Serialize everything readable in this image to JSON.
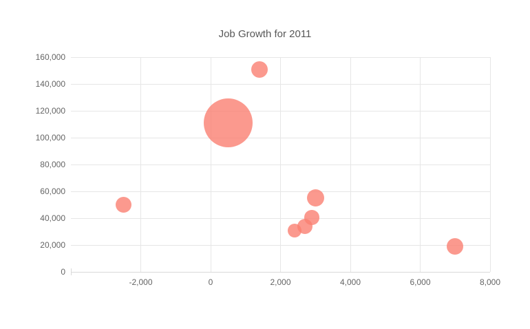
{
  "title": "Job Growth for 2011",
  "chart_data": {
    "type": "scatter",
    "subtype": "bubble",
    "title": "Job Growth for 2011",
    "xlabel": "",
    "ylabel": "",
    "xlim": [
      -4000,
      8000
    ],
    "ylim": [
      0,
      160000
    ],
    "grid": true,
    "legend": "none",
    "bubble_color": "#FA8072",
    "bubble_fill_opacity": 0.8,
    "x_ticks": [
      {
        "v": -2000,
        "label": "-2,000"
      },
      {
        "v": 0,
        "label": "0"
      },
      {
        "v": 2000,
        "label": "2,000"
      },
      {
        "v": 4000,
        "label": "4,000"
      },
      {
        "v": 6000,
        "label": "6,000"
      },
      {
        "v": 8000,
        "label": "8,000"
      }
    ],
    "y_ticks": [
      {
        "v": 0,
        "label": "0"
      },
      {
        "v": 20000,
        "label": "20,000"
      },
      {
        "v": 40000,
        "label": "40,000"
      },
      {
        "v": 60000,
        "label": "60,000"
      },
      {
        "v": 80000,
        "label": "80,000"
      },
      {
        "v": 100000,
        "label": "100,000"
      },
      {
        "v": 120000,
        "label": "120,000"
      },
      {
        "v": 140000,
        "label": "140,000"
      },
      {
        "v": 160000,
        "label": "160,000"
      }
    ],
    "points": [
      {
        "x": -2500,
        "y": 50000,
        "radius_px": 11.5
      },
      {
        "x": 500,
        "y": 111000,
        "radius_px": 35.5
      },
      {
        "x": 1400,
        "y": 151000,
        "radius_px": 12
      },
      {
        "x": 2400,
        "y": 31000,
        "radius_px": 10
      },
      {
        "x": 2700,
        "y": 34000,
        "radius_px": 11
      },
      {
        "x": 2900,
        "y": 40500,
        "radius_px": 10.75
      },
      {
        "x": 3000,
        "y": 55000,
        "radius_px": 12.5
      },
      {
        "x": 7000,
        "y": 19000,
        "radius_px": 12
      }
    ]
  }
}
